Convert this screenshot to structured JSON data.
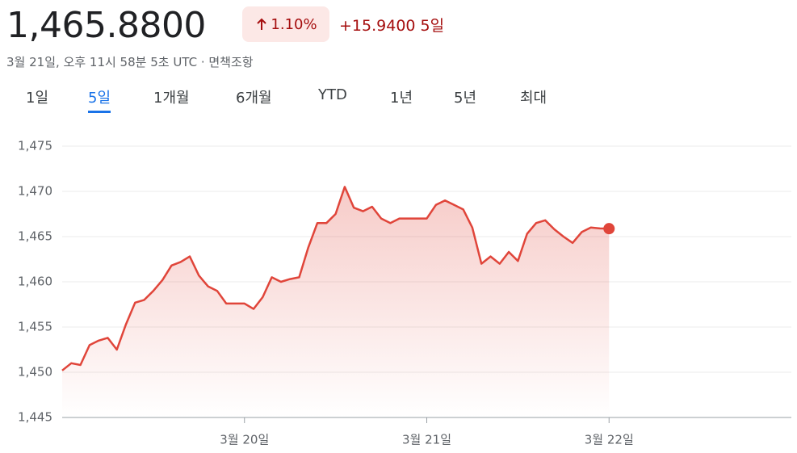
{
  "header": {
    "price": "1,465.8800",
    "change_percent": "1.10%",
    "change": "+15.9400",
    "period": "5일",
    "timestamp": "3월 21일, 오후 11시 58분 5초 UTC · 면책조항"
  },
  "tabs": {
    "items": [
      "1일",
      "5일",
      "1개월",
      "6개월",
      "YTD",
      "1년",
      "5년",
      "최대"
    ],
    "selected": 1
  },
  "chart_data": {
    "type": "line",
    "x": [
      0,
      0.05,
      0.1,
      0.15,
      0.2,
      0.25,
      0.3,
      0.35,
      0.4,
      0.45,
      0.5,
      0.55,
      0.6,
      0.65,
      0.7,
      0.75,
      0.8,
      0.85,
      0.9,
      0.95,
      1.0,
      1.05,
      1.1,
      1.15,
      1.2,
      1.25,
      1.3,
      1.35,
      1.4,
      1.45,
      1.5,
      1.55,
      1.6,
      1.65,
      1.7,
      1.75,
      1.8,
      1.85,
      1.9,
      1.95,
      2.0,
      2.05,
      2.1,
      2.15,
      2.2,
      2.25,
      2.3,
      2.35,
      2.4,
      2.45,
      2.5,
      2.55,
      2.6,
      2.65,
      2.7,
      2.75,
      2.8,
      2.85,
      2.9,
      2.95,
      3.0
    ],
    "series": [
      {
        "color": "#e0453a",
        "values": [
          1450.2,
          1451.0,
          1450.8,
          1453.0,
          1453.5,
          1453.8,
          1452.5,
          1455.3,
          1457.7,
          1458.0,
          1459.0,
          1460.2,
          1461.8,
          1462.2,
          1462.8,
          1460.7,
          1459.5,
          1459.0,
          1457.6,
          1457.6,
          1457.6,
          1457.0,
          1458.3,
          1460.5,
          1460.0,
          1460.3,
          1460.5,
          1463.8,
          1466.5,
          1466.5,
          1467.5,
          1470.5,
          1468.2,
          1467.8,
          1468.3,
          1467.0,
          1466.5,
          1467.0,
          1467.0,
          1467.0,
          1467.0,
          1468.5,
          1469.0,
          1468.5,
          1468.0,
          1466.0,
          1462.0,
          1462.8,
          1462.0,
          1463.3,
          1462.3,
          1465.3,
          1466.5,
          1466.8,
          1465.8,
          1465.0,
          1464.3,
          1465.5,
          1466.0,
          1465.9,
          1465.88
        ]
      }
    ],
    "xlim": [
      0,
      4
    ],
    "xticks": [
      {
        "value": 1,
        "label": "3월 20일"
      },
      {
        "value": 2,
        "label": "3월 21일"
      },
      {
        "value": 3,
        "label": "3월 22일"
      }
    ],
    "ylim": [
      1445,
      1475
    ],
    "yticks": [
      {
        "value": 1445,
        "label": "1,445"
      },
      {
        "value": 1450,
        "label": "1,450"
      },
      {
        "value": 1455,
        "label": "1,455"
      },
      {
        "value": 1460,
        "label": "1,460"
      },
      {
        "value": 1465,
        "label": "1,465"
      },
      {
        "value": 1470,
        "label": "1,470"
      },
      {
        "value": 1475,
        "label": "1,475"
      }
    ],
    "grid": true
  }
}
